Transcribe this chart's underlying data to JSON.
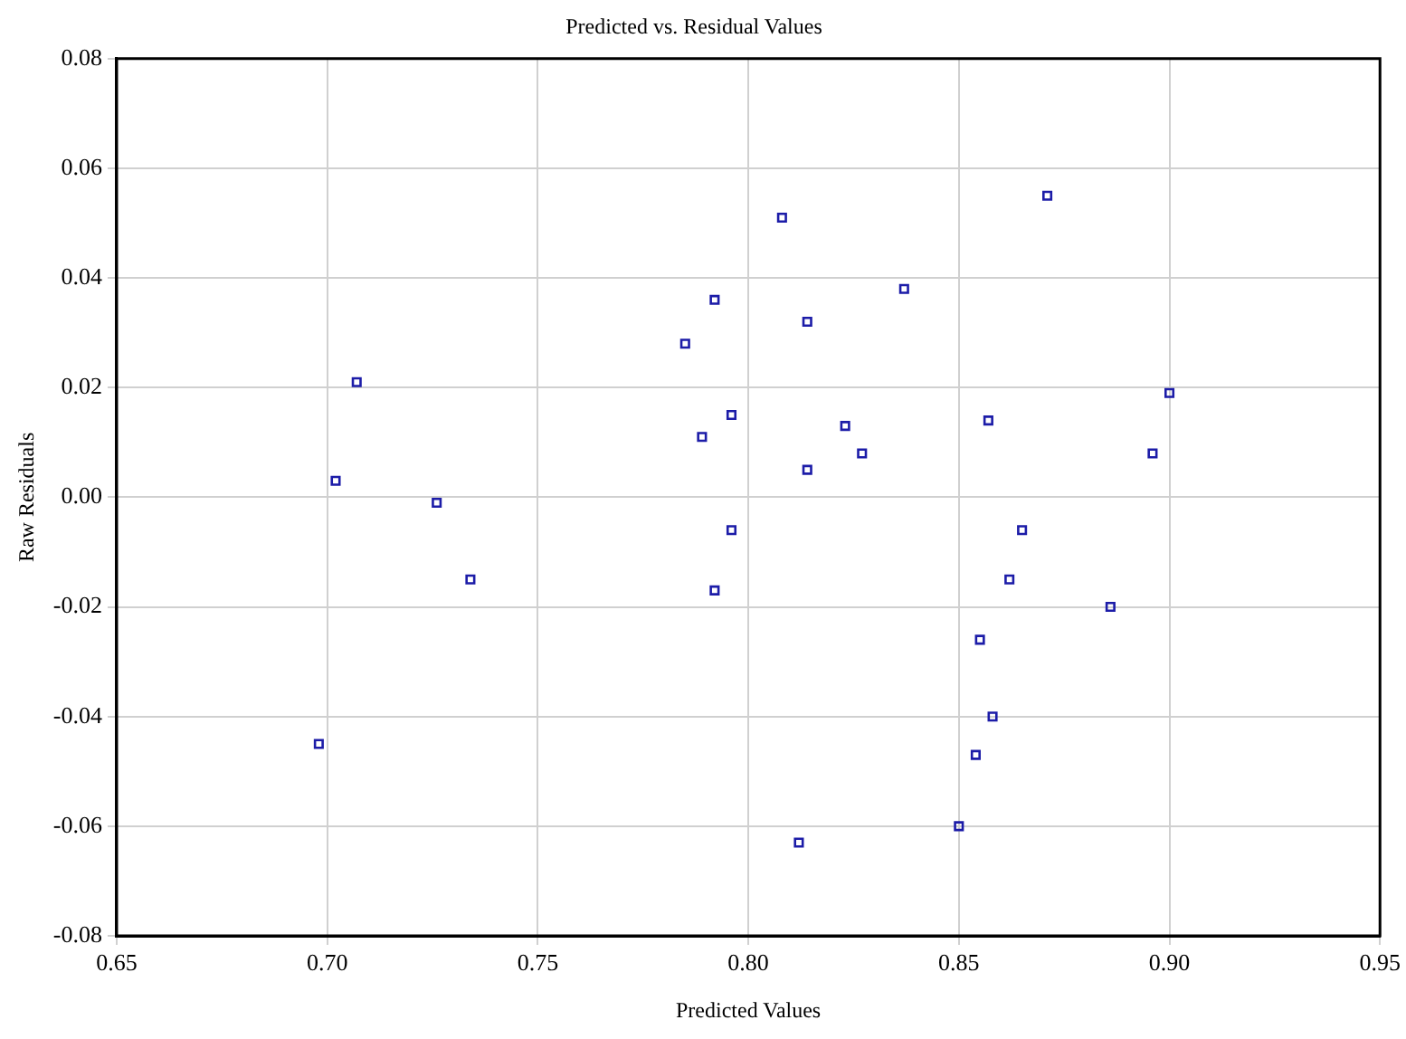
{
  "chart_data": {
    "type": "scatter",
    "title": "Predicted vs. Residual Values",
    "xlabel": "Predicted Values",
    "ylabel": "Raw Residuals",
    "x": [
      0.698,
      0.707,
      0.702,
      0.726,
      0.734,
      0.785,
      0.789,
      0.792,
      0.796,
      0.808,
      0.814,
      0.837,
      0.823,
      0.827,
      0.814,
      0.796,
      0.871,
      0.857,
      0.9,
      0.896,
      0.865,
      0.792,
      0.862,
      0.886,
      0.855,
      0.858,
      0.854,
      0.85,
      0.812
    ],
    "values": [
      -0.045,
      0.021,
      0.003,
      -0.001,
      -0.015,
      0.028,
      0.011,
      0.036,
      0.015,
      0.051,
      0.032,
      0.038,
      0.013,
      0.008,
      0.005,
      -0.006,
      0.055,
      0.014,
      0.019,
      0.008,
      -0.006,
      -0.017,
      -0.015,
      -0.02,
      -0.026,
      -0.04,
      -0.047,
      -0.06,
      -0.063
    ],
    "color": "#1c1ca8",
    "marker": "square",
    "grid": true,
    "legend": false,
    "xlim": [
      0.65,
      0.95
    ],
    "xticks": [
      {
        "value": 0.65,
        "label": "0.65"
      },
      {
        "value": 0.7,
        "label": "0.70"
      },
      {
        "value": 0.75,
        "label": "0.75"
      },
      {
        "value": 0.8,
        "label": "0.80"
      },
      {
        "value": 0.85,
        "label": "0.85"
      },
      {
        "value": 0.9,
        "label": "0.90"
      },
      {
        "value": 0.95,
        "label": "0.95"
      }
    ],
    "ylim": [
      -0.08,
      0.08
    ],
    "yticks": [
      {
        "value": -0.08,
        "label": "-0.08"
      },
      {
        "value": -0.06,
        "label": "-0.06"
      },
      {
        "value": -0.04,
        "label": "-0.04"
      },
      {
        "value": -0.02,
        "label": "-0.02"
      },
      {
        "value": 0,
        "label": "0.00"
      },
      {
        "value": 0.02,
        "label": "0.02"
      },
      {
        "value": 0.04,
        "label": "0.04"
      },
      {
        "value": 0.06,
        "label": "0.06"
      },
      {
        "value": 0.08,
        "label": "0.08"
      }
    ]
  }
}
